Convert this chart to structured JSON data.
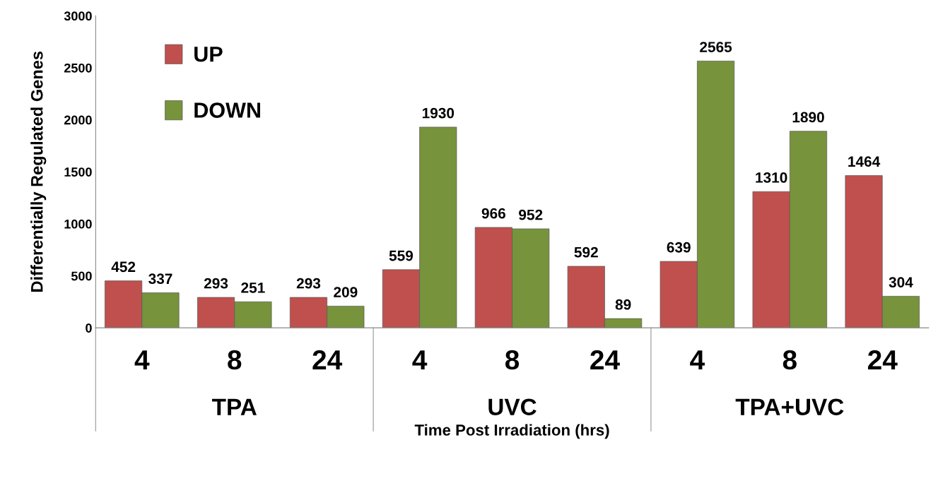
{
  "chart_data": {
    "type": "bar",
    "xlabel": "Time Post Irradiation (hrs)",
    "ylabel": "Differentially Regulated Genes",
    "categories": [
      "4",
      "8",
      "24",
      "4",
      "8",
      "24",
      "4",
      "8",
      "24"
    ],
    "series": [
      {
        "name": "UP",
        "color": "#c0504d",
        "values": [
          452,
          293,
          293,
          559,
          966,
          592,
          639,
          1310,
          1464
        ]
      },
      {
        "name": "DOWN",
        "color": "#77933c",
        "values": [
          337,
          251,
          209,
          1930,
          952,
          89,
          2565,
          1890,
          304
        ]
      }
    ],
    "annotations": [
      "TPA",
      "UVC",
      "TPA+UVC"
    ],
    "ylim": [
      0,
      3000
    ],
    "yticks": [
      0,
      500,
      1000,
      1500,
      2000,
      2500,
      3000
    ],
    "data_labels": true,
    "grid": false,
    "legend": "top left"
  }
}
